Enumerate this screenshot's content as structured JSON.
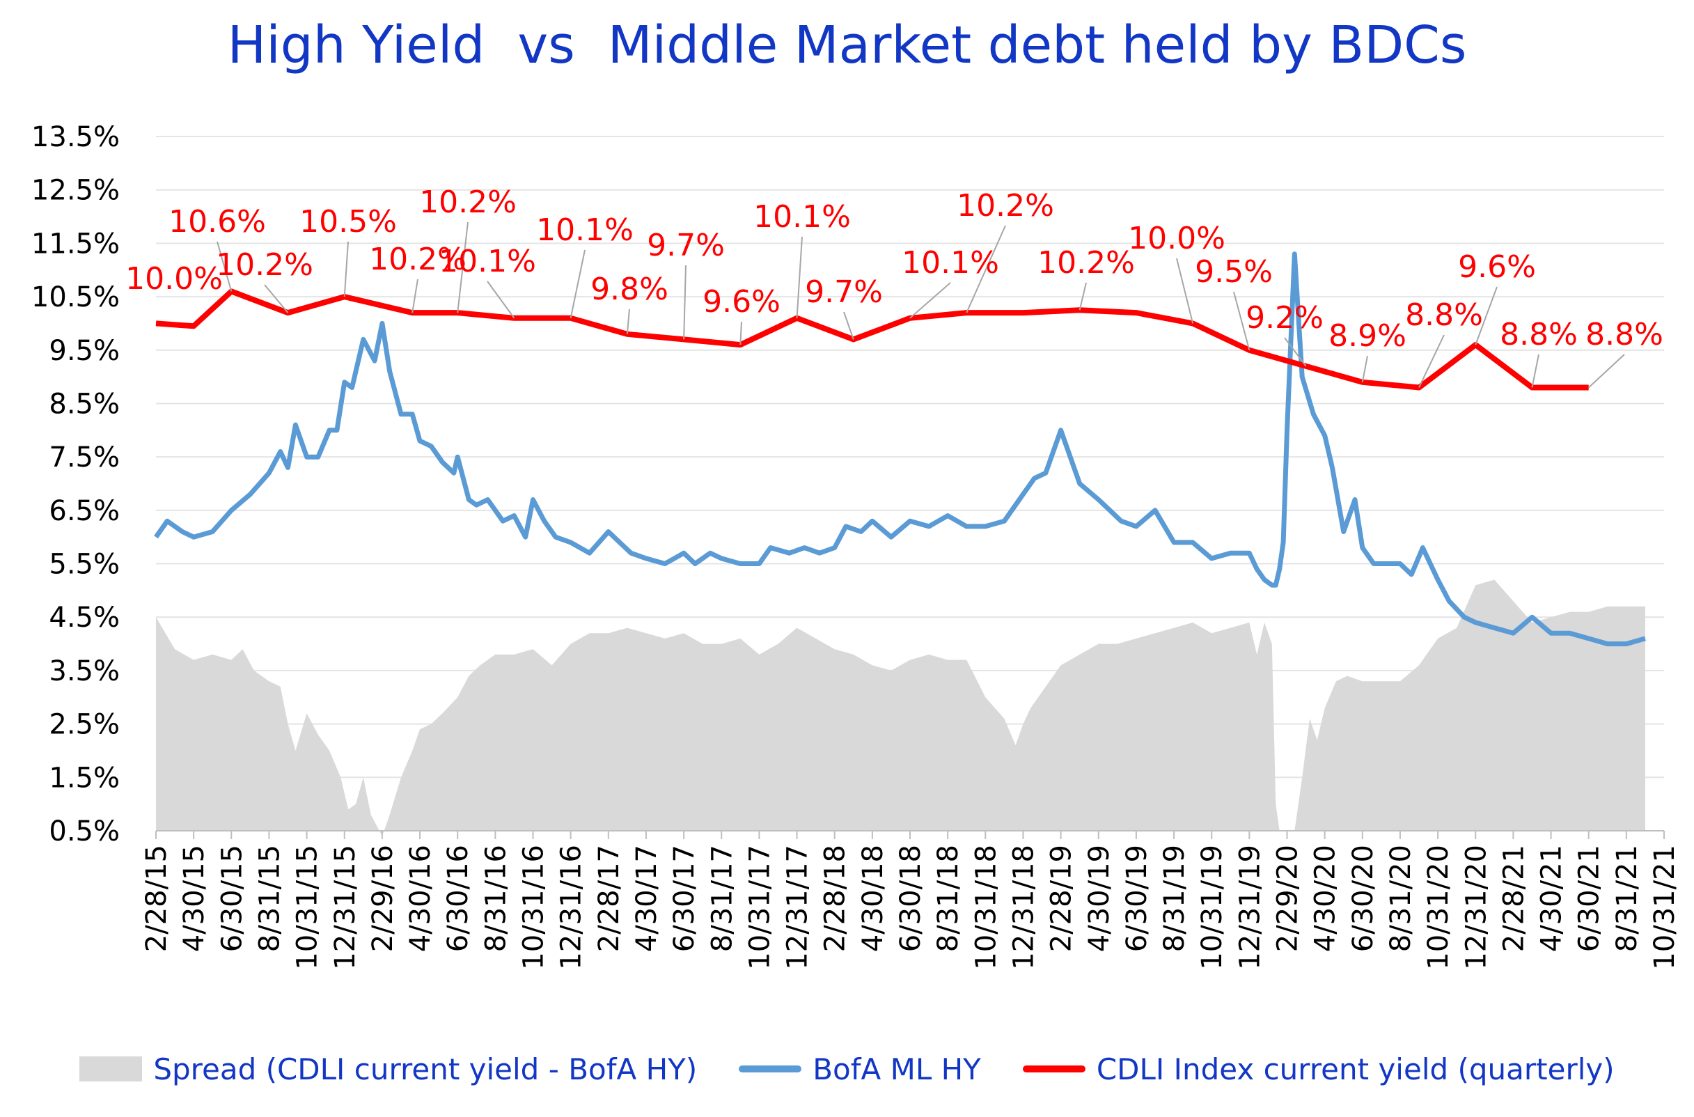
{
  "chart_data": {
    "type": "line",
    "title": "High Yield  vs  Middle Market debt held by BDCs",
    "y_ticks": [
      "13.5%",
      "12.5%",
      "11.5%",
      "10.5%",
      "9.5%",
      "8.5%",
      "7.5%",
      "6.5%",
      "5.5%",
      "4.5%",
      "3.5%",
      "2.5%",
      "1.5%",
      "0.5%"
    ],
    "ylim": [
      0.5,
      13.5
    ],
    "x_ticks": [
      "2/28/15",
      "4/30/15",
      "6/30/15",
      "8/31/15",
      "10/31/15",
      "12/31/15",
      "2/29/16",
      "4/30/16",
      "6/30/16",
      "8/31/16",
      "10/31/16",
      "12/31/16",
      "2/28/17",
      "4/30/17",
      "6/30/17",
      "8/31/17",
      "10/31/17",
      "12/31/17",
      "2/28/18",
      "4/30/18",
      "6/30/18",
      "8/31/18",
      "10/31/18",
      "12/31/18",
      "2/28/19",
      "4/30/19",
      "6/30/19",
      "8/31/19",
      "10/31/19",
      "12/31/19",
      "2/29/20",
      "4/30/20",
      "6/30/20",
      "8/31/20",
      "10/31/20",
      "12/31/20",
      "2/28/21",
      "4/30/21",
      "6/30/21",
      "8/31/21",
      "10/31/21"
    ],
    "grid": true,
    "legend_position": "bottom",
    "series": [
      {
        "name": "CDLI Index current yield (quarterly)",
        "type": "line",
        "color": "#ff0000",
        "x": [
          0,
          1,
          2,
          3.5,
          5,
          6.8,
          8,
          9.5,
          11,
          12.5,
          14,
          15.5,
          17,
          18.5,
          20,
          21.5,
          23,
          24.5,
          26,
          27.5,
          29,
          30.5,
          32,
          33.5,
          35,
          36.5,
          38
        ],
        "values": [
          10.0,
          9.95,
          10.6,
          10.2,
          10.5,
          10.2,
          10.2,
          10.1,
          10.1,
          9.8,
          9.7,
          9.6,
          10.1,
          9.7,
          10.1,
          10.2,
          10.2,
          10.25,
          10.2,
          10.0,
          9.5,
          9.2,
          8.9,
          8.8,
          9.6,
          8.8,
          8.8
        ]
      },
      {
        "name": "BofA ML HY",
        "type": "line",
        "color": "#5b9bd5",
        "x": [
          0,
          0.3,
          0.7,
          1.0,
          1.5,
          2.0,
          2.5,
          3.0,
          3.3,
          3.5,
          3.7,
          4.0,
          4.3,
          4.6,
          4.8,
          5.0,
          5.2,
          5.5,
          5.8,
          6.0,
          6.2,
          6.5,
          6.8,
          7.0,
          7.3,
          7.6,
          7.9,
          8.0,
          8.3,
          8.5,
          8.8,
          9.2,
          9.5,
          9.8,
          10.0,
          10.3,
          10.6,
          11.0,
          11.5,
          12.0,
          12.3,
          12.6,
          13.0,
          13.5,
          14.0,
          14.3,
          14.7,
          15.0,
          15.5,
          16.0,
          16.3,
          16.8,
          17.2,
          17.6,
          18.0,
          18.3,
          18.7,
          19.0,
          19.5,
          20.0,
          20.5,
          21.0,
          21.5,
          22.0,
          22.5,
          22.8,
          23.0,
          23.3,
          23.6,
          24.0,
          24.5,
          25.0,
          25.3,
          25.6,
          26.0,
          26.5,
          27.0,
          27.5,
          28.0,
          28.5,
          29.0,
          29.2,
          29.4,
          29.6,
          29.7,
          29.8,
          29.9,
          30.0,
          30.2,
          30.4,
          30.7,
          31.0,
          31.2,
          31.5,
          31.8,
          32.0,
          32.3,
          32.6,
          33.0,
          33.3,
          33.6,
          34.0,
          34.3,
          34.7,
          35.0,
          35.5,
          36.0,
          36.5,
          37.0,
          37.5,
          38.0,
          38.5,
          39.0,
          39.5
        ],
        "values": [
          6.0,
          6.3,
          6.1,
          6.0,
          6.1,
          6.5,
          6.8,
          7.2,
          7.6,
          7.3,
          8.1,
          7.5,
          7.5,
          8.0,
          8.0,
          8.9,
          8.8,
          9.7,
          9.3,
          10.0,
          9.1,
          8.3,
          8.3,
          7.8,
          7.7,
          7.4,
          7.2,
          7.5,
          6.7,
          6.6,
          6.7,
          6.3,
          6.4,
          6.0,
          6.7,
          6.3,
          6.0,
          5.9,
          5.7,
          6.1,
          5.9,
          5.7,
          5.6,
          5.5,
          5.7,
          5.5,
          5.7,
          5.6,
          5.5,
          5.5,
          5.8,
          5.7,
          5.8,
          5.7,
          5.8,
          6.2,
          6.1,
          6.3,
          6.0,
          6.3,
          6.2,
          6.4,
          6.2,
          6.2,
          6.3,
          6.6,
          6.8,
          7.1,
          7.2,
          8.0,
          7.0,
          6.7,
          6.5,
          6.3,
          6.2,
          6.5,
          5.9,
          5.9,
          5.6,
          5.7,
          5.7,
          5.4,
          5.2,
          5.1,
          5.1,
          5.4,
          5.9,
          8.0,
          11.3,
          9.0,
          8.3,
          7.9,
          7.3,
          6.1,
          6.7,
          5.8,
          5.5,
          5.5,
          5.5,
          5.3,
          5.8,
          5.2,
          4.8,
          4.5,
          4.4,
          4.3,
          4.2,
          4.5,
          4.2,
          4.2,
          4.1,
          4.0,
          4.0,
          4.1
        ]
      },
      {
        "name": "Spread (CDLI current yield - BofA HY)",
        "type": "area",
        "color": "#d9d9d9",
        "x": [
          0,
          0.5,
          1.0,
          1.5,
          2.0,
          2.3,
          2.6,
          3.0,
          3.3,
          3.5,
          3.7,
          4.0,
          4.3,
          4.6,
          4.9,
          5.1,
          5.3,
          5.5,
          5.7,
          6.0,
          6.2,
          6.5,
          6.8,
          7.0,
          7.3,
          7.6,
          8.0,
          8.3,
          8.6,
          9.0,
          9.5,
          10.0,
          10.5,
          11.0,
          11.5,
          12.0,
          12.5,
          13.0,
          13.5,
          14.0,
          14.5,
          15.0,
          15.5,
          16.0,
          16.5,
          17.0,
          17.5,
          18.0,
          18.5,
          19.0,
          19.5,
          20.0,
          20.5,
          21.0,
          21.5,
          22.0,
          22.5,
          22.8,
          23.0,
          23.2,
          23.5,
          24.0,
          24.5,
          25.0,
          25.5,
          26.0,
          26.5,
          27.0,
          27.5,
          28.0,
          28.5,
          29.0,
          29.2,
          29.4,
          29.6,
          29.7,
          29.8,
          29.9,
          30.0,
          30.2,
          30.4,
          30.6,
          30.8,
          31.0,
          31.3,
          31.6,
          32.0,
          32.5,
          33.0,
          33.5,
          34.0,
          34.5,
          35.0,
          35.5,
          36.0,
          36.5,
          37.0,
          37.5,
          38.0,
          38.5,
          39.0,
          39.5
        ],
        "values": [
          4.5,
          3.9,
          3.7,
          3.8,
          3.7,
          3.9,
          3.5,
          3.3,
          3.2,
          2.5,
          2.0,
          2.7,
          2.3,
          2.0,
          1.5,
          0.9,
          1.0,
          1.5,
          0.8,
          0.4,
          0.8,
          1.5,
          2.0,
          2.4,
          2.5,
          2.7,
          3.0,
          3.4,
          3.6,
          3.8,
          3.8,
          3.9,
          3.6,
          4.0,
          4.2,
          4.2,
          4.3,
          4.2,
          4.1,
          4.2,
          4.0,
          4.0,
          4.1,
          3.8,
          4.0,
          4.3,
          4.1,
          3.9,
          3.8,
          3.6,
          3.5,
          3.7,
          3.8,
          3.7,
          3.7,
          3.0,
          2.6,
          2.1,
          2.5,
          2.8,
          3.1,
          3.6,
          3.8,
          4.0,
          4.0,
          4.1,
          4.2,
          4.3,
          4.4,
          4.2,
          4.3,
          4.4,
          3.8,
          4.4,
          4.0,
          1.0,
          0.5,
          0.5,
          0.5,
          0.5,
          1.5,
          2.6,
          2.2,
          2.8,
          3.3,
          3.4,
          3.3,
          3.3,
          3.3,
          3.6,
          4.1,
          4.3,
          5.1,
          5.2,
          4.8,
          4.4,
          4.5,
          4.6,
          4.6,
          4.7,
          4.7,
          4.7
        ]
      }
    ],
    "data_labels": [
      "10.0%",
      "10.6%",
      "10.2%",
      "10.5%",
      "10.2%",
      "10.2%",
      "10.1%",
      "10.1%",
      "9.8%",
      "9.7%",
      "9.6%",
      "10.1%",
      "9.7%",
      "10.1%",
      "10.2%",
      "10.2%",
      "10.0%",
      "9.5%",
      "9.2%",
      "8.9%",
      "8.8%",
      "9.6%",
      "8.8%",
      "8.8%"
    ],
    "legend": [
      "Spread (CDLI current yield - BofA HY)",
      "BofA ML HY",
      "CDLI Index current yield (quarterly)"
    ]
  },
  "colors": {
    "title": "#1237c4",
    "cdli": "#ff0000",
    "hy": "#5b9bd5",
    "spread": "#d9d9d9",
    "grid": "#e4e4e4",
    "axis_text": "#000000"
  }
}
